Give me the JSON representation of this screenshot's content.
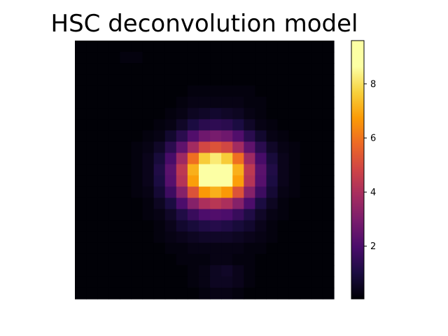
{
  "chart_data": {
    "type": "heatmap",
    "title": "HSC deconvolution model",
    "colormap": "inferno",
    "grid": false,
    "axes_visible": false,
    "value_range": [
      0.05,
      9.6
    ],
    "colorbar": {
      "position": "right",
      "ticks": [
        2,
        4,
        6,
        8
      ],
      "tick_labels": [
        "2",
        "4",
        "6",
        "8"
      ]
    },
    "rows": 23,
    "cols": 23,
    "values": [
      [
        0.1,
        0.1,
        0.1,
        0.1,
        0.1,
        0.1,
        0.1,
        0.1,
        0.1,
        0.1,
        0.1,
        0.1,
        0.1,
        0.1,
        0.1,
        0.1,
        0.1,
        0.1,
        0.1,
        0.1,
        0.1,
        0.1,
        0.1
      ],
      [
        0.1,
        0.1,
        0.1,
        0.1,
        0.2,
        0.2,
        0.1,
        0.1,
        0.1,
        0.1,
        0.1,
        0.1,
        0.1,
        0.1,
        0.1,
        0.1,
        0.1,
        0.1,
        0.1,
        0.1,
        0.1,
        0.1,
        0.1
      ],
      [
        0.1,
        0.1,
        0.1,
        0.1,
        0.1,
        0.1,
        0.1,
        0.1,
        0.1,
        0.1,
        0.1,
        0.1,
        0.1,
        0.1,
        0.1,
        0.1,
        0.1,
        0.1,
        0.1,
        0.1,
        0.1,
        0.1,
        0.1
      ],
      [
        0.1,
        0.1,
        0.1,
        0.1,
        0.1,
        0.1,
        0.1,
        0.1,
        0.1,
        0.1,
        0.1,
        0.1,
        0.1,
        0.1,
        0.1,
        0.1,
        0.1,
        0.1,
        0.1,
        0.1,
        0.1,
        0.1,
        0.1
      ],
      [
        0.1,
        0.1,
        0.1,
        0.1,
        0.1,
        0.1,
        0.1,
        0.1,
        0.1,
        0.1,
        0.2,
        0.2,
        0.2,
        0.2,
        0.2,
        0.2,
        0.1,
        0.1,
        0.1,
        0.1,
        0.1,
        0.1,
        0.1
      ],
      [
        0.1,
        0.1,
        0.1,
        0.1,
        0.1,
        0.1,
        0.1,
        0.1,
        0.1,
        0.2,
        0.3,
        0.3,
        0.3,
        0.3,
        0.3,
        0.2,
        0.2,
        0.1,
        0.1,
        0.1,
        0.1,
        0.1,
        0.1
      ],
      [
        0.1,
        0.1,
        0.1,
        0.1,
        0.1,
        0.1,
        0.1,
        0.1,
        0.2,
        0.3,
        0.5,
        0.6,
        0.7,
        0.6,
        0.5,
        0.3,
        0.2,
        0.1,
        0.1,
        0.1,
        0.1,
        0.1,
        0.1
      ],
      [
        0.1,
        0.1,
        0.1,
        0.1,
        0.1,
        0.1,
        0.1,
        0.2,
        0.3,
        0.6,
        1.0,
        1.3,
        1.4,
        1.3,
        1.0,
        0.6,
        0.3,
        0.2,
        0.1,
        0.1,
        0.1,
        0.1,
        0.1
      ],
      [
        0.1,
        0.1,
        0.1,
        0.1,
        0.1,
        0.1,
        0.2,
        0.3,
        0.7,
        1.3,
        2.1,
        2.7,
        2.9,
        2.7,
        2.1,
        1.3,
        0.7,
        0.3,
        0.2,
        0.1,
        0.1,
        0.1,
        0.1
      ],
      [
        0.1,
        0.1,
        0.1,
        0.1,
        0.1,
        0.2,
        0.3,
        0.6,
        1.3,
        2.4,
        3.8,
        4.9,
        5.2,
        4.9,
        3.8,
        2.4,
        1.3,
        0.6,
        0.3,
        0.2,
        0.1,
        0.1,
        0.1
      ],
      [
        0.1,
        0.1,
        0.1,
        0.1,
        0.1,
        0.2,
        0.4,
        0.9,
        1.9,
        3.7,
        5.9,
        7.6,
        8.2,
        7.6,
        5.9,
        3.7,
        1.9,
        0.9,
        0.4,
        0.2,
        0.1,
        0.1,
        0.1
      ],
      [
        0.1,
        0.1,
        0.1,
        0.1,
        0.1,
        0.2,
        0.4,
        1.1,
        2.3,
        4.4,
        7.1,
        9.1,
        9.6,
        9.1,
        7.1,
        4.4,
        2.3,
        1.1,
        0.4,
        0.2,
        0.1,
        0.1,
        0.1
      ],
      [
        0.1,
        0.1,
        0.1,
        0.1,
        0.1,
        0.2,
        0.4,
        1.0,
        2.2,
        4.2,
        6.8,
        8.8,
        9.3,
        8.8,
        6.8,
        4.2,
        2.2,
        1.0,
        0.4,
        0.2,
        0.1,
        0.1,
        0.1
      ],
      [
        0.1,
        0.1,
        0.1,
        0.1,
        0.1,
        0.2,
        0.3,
        0.8,
        1.7,
        3.2,
        5.2,
        6.7,
        7.1,
        6.7,
        5.2,
        3.2,
        1.7,
        0.8,
        0.3,
        0.2,
        0.1,
        0.1,
        0.1
      ],
      [
        0.1,
        0.1,
        0.1,
        0.1,
        0.1,
        0.1,
        0.2,
        0.5,
        1.0,
        2.0,
        3.2,
        4.0,
        4.3,
        4.0,
        3.2,
        2.0,
        1.0,
        0.5,
        0.2,
        0.1,
        0.1,
        0.1,
        0.1
      ],
      [
        0.1,
        0.1,
        0.1,
        0.1,
        0.1,
        0.1,
        0.2,
        0.3,
        0.6,
        1.1,
        1.6,
        2.0,
        2.1,
        2.0,
        1.6,
        1.1,
        0.6,
        0.3,
        0.2,
        0.1,
        0.1,
        0.1,
        0.1
      ],
      [
        0.1,
        0.1,
        0.1,
        0.1,
        0.1,
        0.1,
        0.1,
        0.2,
        0.4,
        0.7,
        0.9,
        1.1,
        1.2,
        1.1,
        0.9,
        0.7,
        0.4,
        0.2,
        0.1,
        0.1,
        0.1,
        0.1,
        0.1
      ],
      [
        0.1,
        0.1,
        0.1,
        0.1,
        0.1,
        0.1,
        0.1,
        0.2,
        0.3,
        0.4,
        0.5,
        0.6,
        0.6,
        0.6,
        0.5,
        0.4,
        0.3,
        0.2,
        0.1,
        0.1,
        0.1,
        0.1,
        0.1
      ],
      [
        0.1,
        0.1,
        0.1,
        0.1,
        0.1,
        0.1,
        0.1,
        0.1,
        0.2,
        0.2,
        0.3,
        0.3,
        0.3,
        0.3,
        0.3,
        0.2,
        0.2,
        0.1,
        0.1,
        0.1,
        0.1,
        0.1,
        0.1
      ],
      [
        0.1,
        0.1,
        0.1,
        0.1,
        0.1,
        0.1,
        0.1,
        0.1,
        0.1,
        0.2,
        0.2,
        0.2,
        0.3,
        0.3,
        0.2,
        0.2,
        0.1,
        0.1,
        0.1,
        0.1,
        0.1,
        0.1,
        0.1
      ],
      [
        0.1,
        0.1,
        0.1,
        0.1,
        0.1,
        0.1,
        0.1,
        0.1,
        0.1,
        0.1,
        0.2,
        0.3,
        0.5,
        0.6,
        0.4,
        0.2,
        0.1,
        0.1,
        0.1,
        0.1,
        0.1,
        0.1,
        0.1
      ],
      [
        0.1,
        0.1,
        0.1,
        0.1,
        0.1,
        0.1,
        0.1,
        0.1,
        0.1,
        0.1,
        0.2,
        0.3,
        0.5,
        0.5,
        0.4,
        0.2,
        0.1,
        0.1,
        0.1,
        0.1,
        0.1,
        0.1,
        0.1
      ],
      [
        0.1,
        0.1,
        0.1,
        0.1,
        0.1,
        0.1,
        0.1,
        0.1,
        0.1,
        0.1,
        0.1,
        0.2,
        0.3,
        0.3,
        0.2,
        0.1,
        0.1,
        0.1,
        0.1,
        0.1,
        0.1,
        0.1,
        0.1
      ]
    ]
  }
}
